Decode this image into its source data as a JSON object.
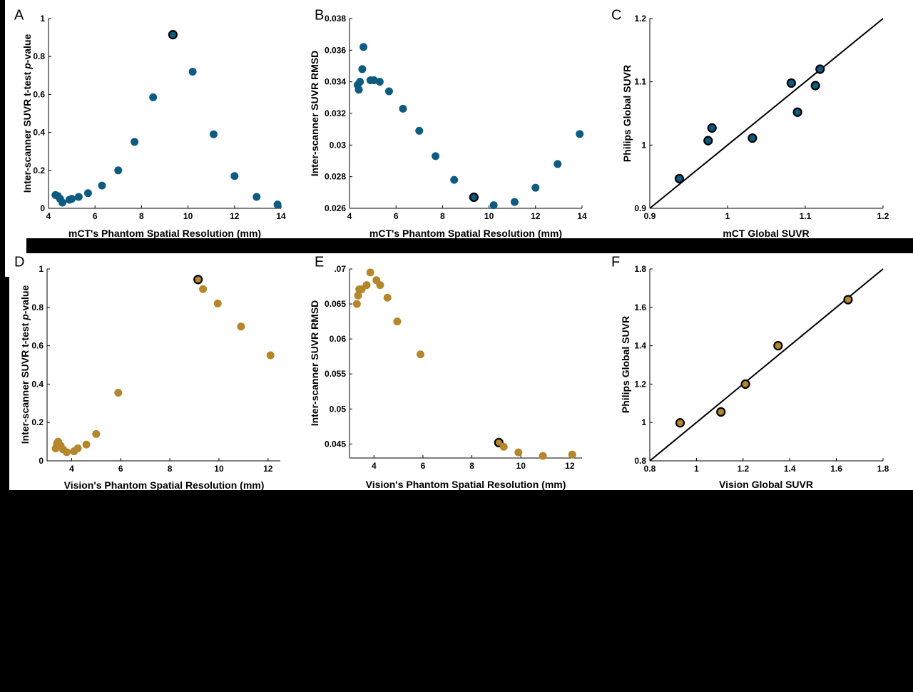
{
  "colors": {
    "mct_point": "#0d5b80",
    "vision_point": "#b5862a",
    "highlight_edge": "#000000",
    "background": "#000000",
    "panel": "#ffffff"
  },
  "chart_data": [
    {
      "panel": "A",
      "type": "scatter",
      "xlabel": "mCT's Phantom Spatial Resolution (mm)",
      "ylabel": "Inter-scanner SUVR t-test p-value",
      "xlim": [
        4,
        14
      ],
      "ylim": [
        0,
        1
      ],
      "xticks": [
        "4",
        "6",
        "8",
        "10",
        "12",
        "14"
      ],
      "yticks": [
        "0",
        "0.2",
        "0.4",
        "0.6",
        "0.8",
        "1"
      ],
      "series": [
        {
          "color": "#0d5b80",
          "x": [
            4.3,
            4.4,
            4.5,
            4.6,
            4.9,
            5.0,
            5.3,
            5.7,
            6.3,
            7.0,
            7.7,
            8.5,
            9.35,
            10.2,
            11.1,
            12.0,
            12.95,
            13.85
          ],
          "y": [
            0.07,
            0.065,
            0.05,
            0.03,
            0.045,
            0.05,
            0.06,
            0.08,
            0.12,
            0.2,
            0.35,
            0.585,
            0.915,
            0.72,
            0.39,
            0.17,
            0.06,
            0.02
          ]
        }
      ],
      "highlight": {
        "x": 9.35,
        "y": 0.915
      }
    },
    {
      "panel": "B",
      "type": "scatter",
      "xlabel": "mCT's Phantom Spatial Resolution (mm)",
      "ylabel": "Inter-scanner SUVR RMSD",
      "xlim": [
        4,
        14
      ],
      "ylim": [
        0.026,
        0.038
      ],
      "xticks": [
        "4",
        "6",
        "8",
        "10",
        "12",
        "14"
      ],
      "yticks": [
        "0.026",
        "0.028",
        "0.03",
        "0.032",
        "0.034",
        "0.036",
        "0.038"
      ],
      "series": [
        {
          "color": "#0d5b80",
          "x": [
            4.35,
            4.4,
            4.45,
            4.55,
            4.6,
            4.9,
            5.05,
            5.3,
            5.7,
            6.3,
            7.0,
            7.7,
            8.5,
            9.35,
            10.2,
            11.1,
            12.0,
            12.95,
            13.9
          ],
          "y": [
            0.0338,
            0.0335,
            0.034,
            0.0348,
            0.0362,
            0.0341,
            0.0341,
            0.034,
            0.0334,
            0.0323,
            0.0309,
            0.0293,
            0.0278,
            0.0267,
            0.0262,
            0.0264,
            0.0273,
            0.0288,
            0.0307
          ]
        }
      ],
      "highlight": {
        "x": 9.35,
        "y": 0.0267
      }
    },
    {
      "panel": "C",
      "type": "scatter",
      "xlabel": "mCT Global SUVR",
      "ylabel": "Philips Global SUVR",
      "xlim": [
        0.9,
        1.2
      ],
      "ylim": [
        0.9,
        1.2
      ],
      "xticks": [
        "0.9",
        "1",
        "1.1",
        "1.2"
      ],
      "yticks": [
        "0.9",
        "1",
        "1.1",
        "1.2"
      ],
      "series": [
        {
          "color": "#0d5b80",
          "x": [
            0.938,
            0.975,
            0.98,
            1.032,
            1.082,
            1.09,
            1.113,
            1.119
          ],
          "y": [
            0.947,
            1.007,
            1.027,
            1.011,
            1.098,
            1.052,
            1.094,
            1.12
          ]
        }
      ],
      "identity_line": true,
      "all_outlined": true
    },
    {
      "panel": "D",
      "type": "scatter",
      "xlabel": "Vision's Phantom Spatial Resolution (mm)",
      "ylabel": "Inter-scanner SUVR t-test p-value",
      "xlim": [
        3,
        12.5
      ],
      "ylim": [
        0,
        1
      ],
      "xticks": [
        "4",
        "6",
        "8",
        "10",
        "12"
      ],
      "yticks": [
        "0",
        "0.2",
        "0.4",
        "0.6",
        "0.8",
        "1"
      ],
      "series": [
        {
          "color": "#b5862a",
          "x": [
            3.35,
            3.4,
            3.45,
            3.55,
            3.65,
            3.8,
            4.1,
            4.25,
            4.6,
            5.0,
            5.9,
            9.15,
            9.35,
            9.95,
            10.9,
            12.1
          ],
          "y": [
            0.065,
            0.09,
            0.1,
            0.08,
            0.06,
            0.045,
            0.05,
            0.065,
            0.085,
            0.14,
            0.355,
            0.945,
            0.895,
            0.82,
            0.7,
            0.55
          ]
        }
      ],
      "highlight": {
        "x": 9.15,
        "y": 0.945
      }
    },
    {
      "panel": "E",
      "type": "scatter",
      "xlabel": "Vision's Phantom Spatial Resolution (mm)",
      "ylabel": "Inter-scanner SUVR RMSD",
      "xlim": [
        3,
        12.5
      ],
      "ylim": [
        0.043,
        0.07
      ],
      "xticks": [
        "4",
        "6",
        "8",
        "10",
        "12"
      ],
      "yticks": [
        ".07",
        "0.065",
        "0.06",
        "0.055",
        "0.05",
        "0.045"
      ],
      "ytick_values": [
        0.07,
        0.065,
        0.06,
        0.055,
        0.05,
        0.045
      ],
      "series": [
        {
          "color": "#b5862a",
          "x": [
            3.3,
            3.35,
            3.4,
            3.5,
            3.7,
            3.85,
            4.1,
            4.25,
            4.55,
            4.95,
            5.9,
            9.1,
            9.3,
            9.9,
            10.9,
            12.1
          ],
          "y": [
            0.065,
            0.0662,
            0.0671,
            0.0671,
            0.0677,
            0.0695,
            0.0684,
            0.0677,
            0.0659,
            0.0625,
            0.0578,
            0.0452,
            0.0446,
            0.0438,
            0.0433,
            0.0435
          ]
        }
      ],
      "highlight": {
        "x": 9.1,
        "y": 0.0452
      }
    },
    {
      "panel": "F",
      "type": "scatter",
      "xlabel": "Vision Global SUVR",
      "ylabel": "Philips Global SUVR",
      "xlim": [
        0.8,
        1.8
      ],
      "ylim": [
        0.8,
        1.8
      ],
      "xticks": [
        "0.8",
        "1",
        "1.2",
        "1.4",
        "1.6",
        "1.8"
      ],
      "yticks": [
        "0.8",
        "1",
        "1.2",
        "1.4",
        "1.6",
        "1.8"
      ],
      "series": [
        {
          "color": "#b5862a",
          "x": [
            0.93,
            1.105,
            1.21,
            1.35,
            1.65
          ],
          "y": [
            0.998,
            1.055,
            1.2,
            1.4,
            1.64
          ]
        }
      ],
      "identity_line": true,
      "all_outlined": true
    }
  ]
}
